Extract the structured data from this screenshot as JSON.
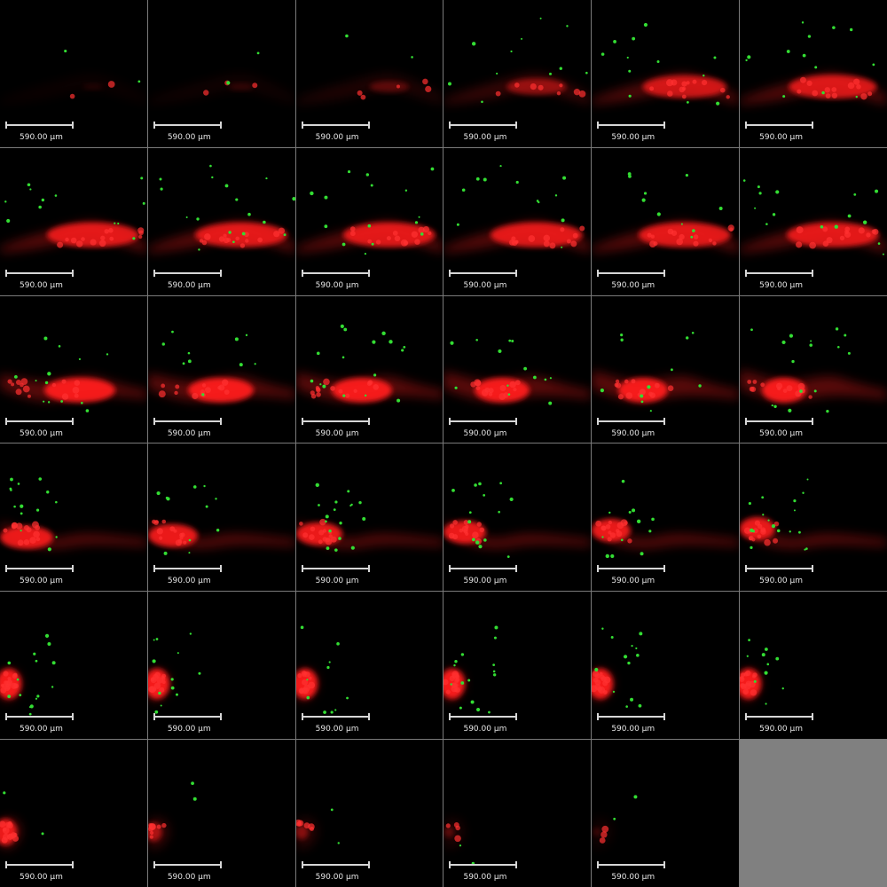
{
  "montage": {
    "scale_bar_label": "590.00 µm",
    "colors": {
      "red_channel": "#ff1a1a",
      "green_channel": "#33dd33",
      "background": "#000000",
      "grid_line": "#7a7a7a",
      "empty_tile": "#808080"
    },
    "tile_count": 36,
    "slices": [
      {
        "index": 1
      },
      {
        "index": 2
      },
      {
        "index": 3
      },
      {
        "index": 4
      },
      {
        "index": 5
      },
      {
        "index": 6
      },
      {
        "index": 7
      },
      {
        "index": 8
      },
      {
        "index": 9
      },
      {
        "index": 10
      },
      {
        "index": 11
      },
      {
        "index": 12
      },
      {
        "index": 13
      },
      {
        "index": 14
      },
      {
        "index": 15
      },
      {
        "index": 16
      },
      {
        "index": 17
      },
      {
        "index": 18
      },
      {
        "index": 19
      },
      {
        "index": 20
      },
      {
        "index": 21
      },
      {
        "index": 22
      },
      {
        "index": 23
      },
      {
        "index": 24
      },
      {
        "index": 25
      },
      {
        "index": 26
      },
      {
        "index": 27
      },
      {
        "index": 28
      },
      {
        "index": 29
      },
      {
        "index": 30
      },
      {
        "index": 31
      },
      {
        "index": 32
      },
      {
        "index": 33
      },
      {
        "index": 34
      },
      {
        "index": 35
      }
    ]
  }
}
